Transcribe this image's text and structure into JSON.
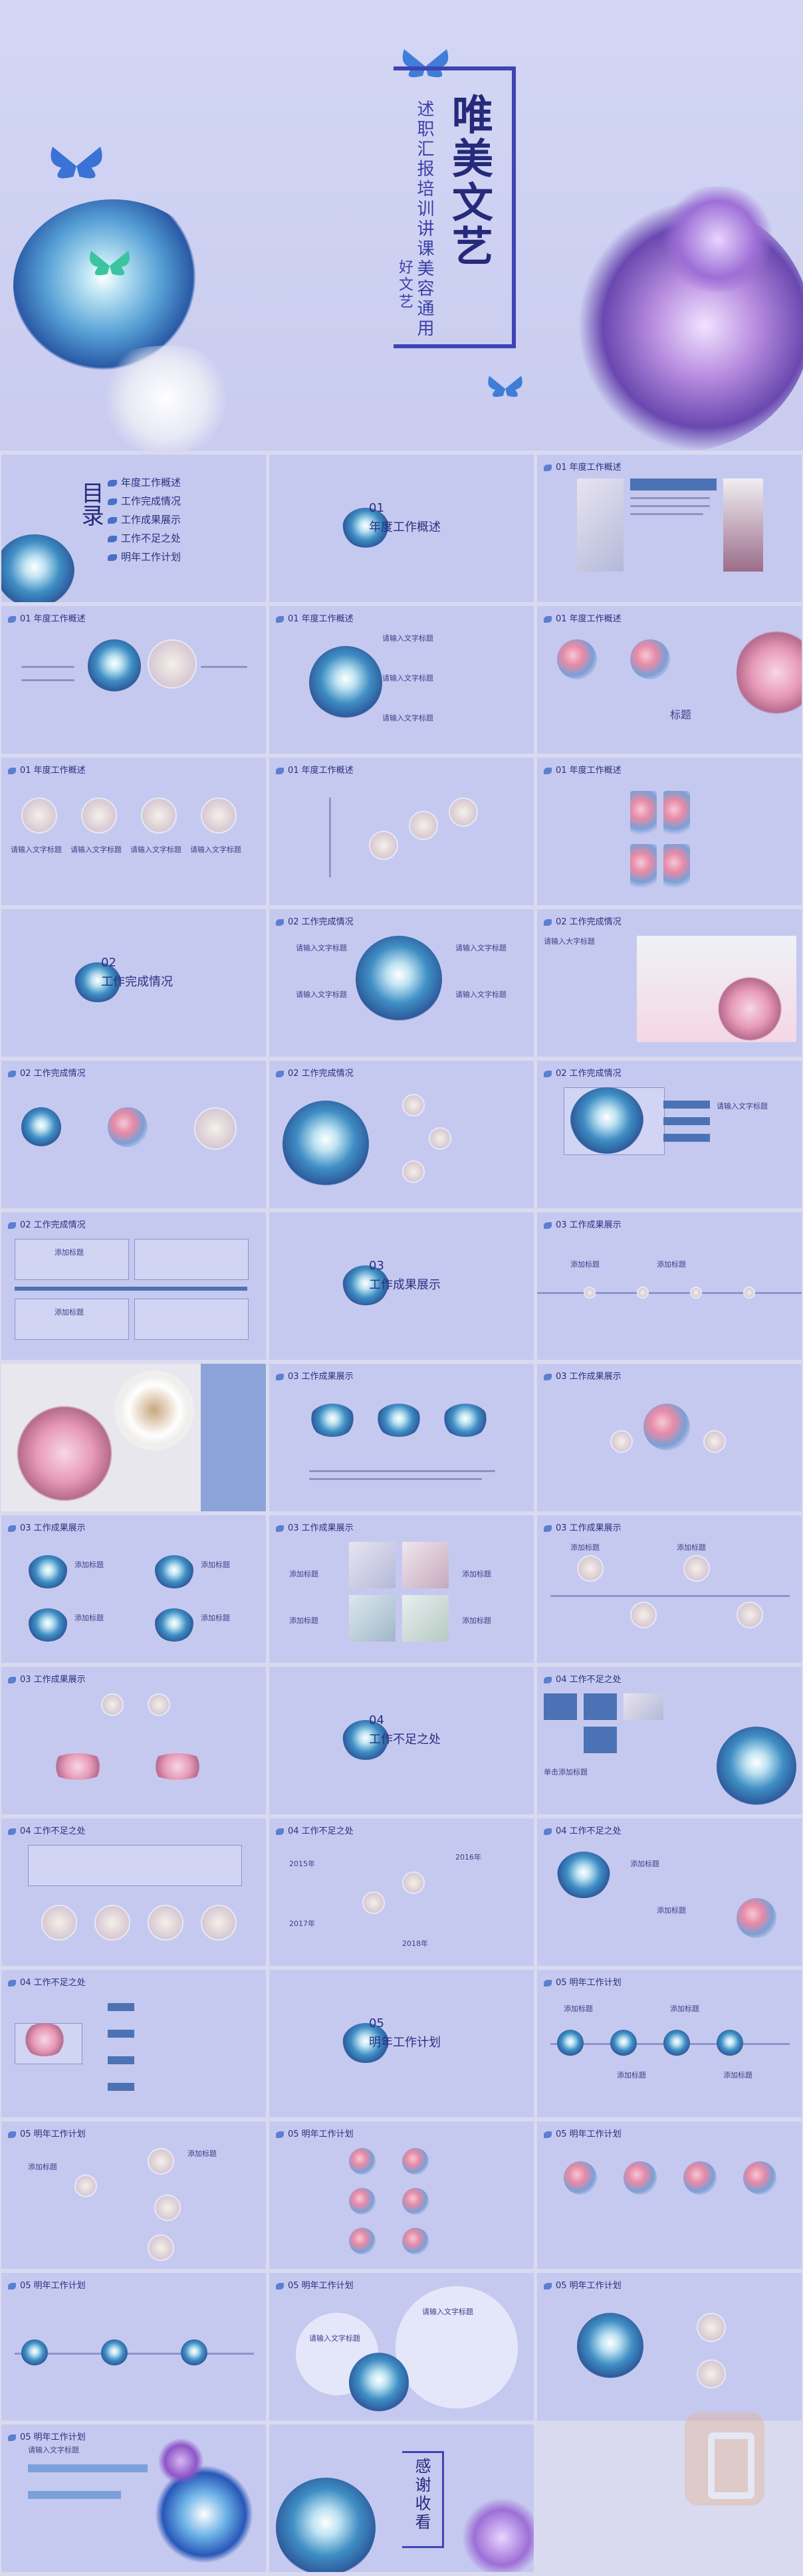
{
  "hero": {
    "title": "唯美文艺",
    "subtitle": "述职汇报培训讲课美容通用",
    "tagline": "好文艺"
  },
  "toc": {
    "title": "目录",
    "items": [
      "年度工作概述",
      "工作完成情况",
      "工作成果展示",
      "工作不足之处",
      "明年工作计划"
    ]
  },
  "sections": {
    "s1": {
      "num": "01",
      "title": "年度工作概述",
      "header": "01 年度工作概述"
    },
    "s2": {
      "num": "02",
      "title": "工作完成情况",
      "header": "02 工作完成情况"
    },
    "s3": {
      "num": "03",
      "title": "工作成果展示",
      "header": "03 工作成果展示"
    },
    "s4": {
      "num": "04",
      "title": "工作不足之处",
      "header": "04 工作不足之处"
    },
    "s5": {
      "num": "05",
      "title": "明年工作计划",
      "header": "05 明年工作计划"
    }
  },
  "labels": {
    "title_small": "标题",
    "add_title": "添加标题",
    "enter_title": "请输入文字标题",
    "enter_text": "请输入大字标题",
    "years": [
      "2015年",
      "2016年",
      "2017年",
      "2018年"
    ],
    "title_a": "单击添加标题"
  },
  "ending": "感谢收看",
  "colors": {
    "primary": "#262a7a",
    "accent": "#3e43b6",
    "slide_bg": "#c6c9ef",
    "panel": "#4b72b4"
  }
}
